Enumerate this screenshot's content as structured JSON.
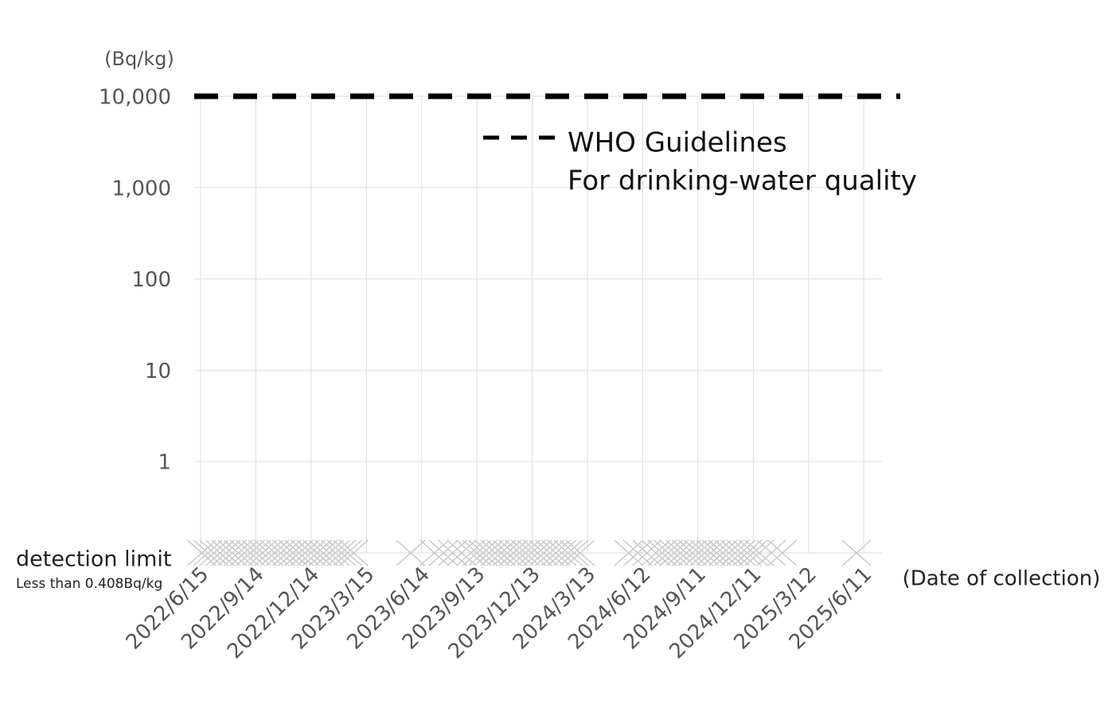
{
  "chart_data": {
    "type": "scatter",
    "y_unit_label": "(Bq/kg)",
    "x_label": "(Date of collection)",
    "log_y": true,
    "grid": true,
    "ylim": [
      0.1,
      10000
    ],
    "yticks": [
      1,
      10,
      100,
      {
        "value": 1000,
        "label": "1,000"
      },
      {
        "value": 10000,
        "label": "10,000"
      }
    ],
    "xlim": [
      "2022/6/15",
      "2025/7/11"
    ],
    "xticks": [
      "2022/6/15",
      "2022/9/14",
      "2022/12/14",
      "2023/3/15",
      "2023/6/14",
      "2023/9/13",
      "2023/12/13",
      "2024/3/13",
      "2024/6/12",
      "2024/9/11",
      "2024/12/11",
      "2025/3/12",
      "2025/6/11"
    ],
    "detection_limit": {
      "label": "detection limit",
      "note": "Less than 0.408Bq/kg"
    },
    "reference_line": {
      "value": 10000,
      "label": [
        "WHO Guidelines",
        "For drinking-water quality"
      ],
      "color": "#000000"
    },
    "marker_color": "#c8c8c8",
    "x": [
      "2022/6/17",
      "2022/6/27",
      "2022/7/7",
      "2022/7/17",
      "2022/7/27",
      "2022/8/6",
      "2022/8/16",
      "2022/8/26",
      "2022/9/5",
      "2022/9/15",
      "2022/9/25",
      "2022/10/5",
      "2022/10/15",
      "2022/10/25",
      "2022/11/4",
      "2022/11/14",
      "2022/11/24",
      "2022/12/4",
      "2022/12/14",
      "2022/12/24",
      "2023/1/3",
      "2023/1/13",
      "2023/1/23",
      "2023/2/2",
      "2023/2/12",
      "2023/2/22",
      "2023/5/27",
      "2023/7/5",
      "2023/7/20",
      "2023/8/4",
      "2023/8/19",
      "2023/9/3",
      "2023/9/13",
      "2023/9/23",
      "2023/10/3",
      "2023/10/13",
      "2023/10/23",
      "2023/11/2",
      "2023/11/12",
      "2023/11/22",
      "2023/12/2",
      "2023/12/12",
      "2023/12/22",
      "2024/1/1",
      "2024/1/11",
      "2024/1/21",
      "2024/1/31",
      "2024/2/10",
      "2024/2/20",
      "2024/3/1",
      "2024/5/20",
      "2024/6/4",
      "2024/6/19",
      "2024/7/4",
      "2024/7/14",
      "2024/7/24",
      "2024/8/3",
      "2024/8/13",
      "2024/8/23",
      "2024/9/2",
      "2024/9/12",
      "2024/9/22",
      "2024/10/2",
      "2024/10/12",
      "2024/10/22",
      "2024/11/1",
      "2024/11/11",
      "2024/11/21",
      "2024/12/1",
      "2024/12/11",
      "2024/12/21",
      "2025/1/10",
      "2025/1/28",
      "2025/5/30"
    ],
    "values": [
      0.1,
      0.1,
      0.1,
      0.1,
      0.1,
      0.1,
      0.1,
      0.1,
      0.1,
      0.1,
      0.1,
      0.1,
      0.1,
      0.1,
      0.1,
      0.1,
      0.1,
      0.1,
      0.1,
      0.1,
      0.1,
      0.1,
      0.1,
      0.1,
      0.1,
      0.1,
      0.1,
      0.1,
      0.1,
      0.1,
      0.1,
      0.1,
      0.1,
      0.1,
      0.1,
      0.1,
      0.1,
      0.1,
      0.1,
      0.1,
      0.1,
      0.1,
      0.1,
      0.1,
      0.1,
      0.1,
      0.1,
      0.1,
      0.1,
      0.1,
      0.1,
      0.1,
      0.1,
      0.1,
      0.1,
      0.1,
      0.1,
      0.1,
      0.1,
      0.1,
      0.1,
      0.1,
      0.1,
      0.1,
      0.1,
      0.1,
      0.1,
      0.1,
      0.1,
      0.1,
      0.1,
      0.1,
      0.1,
      0.1
    ]
  }
}
